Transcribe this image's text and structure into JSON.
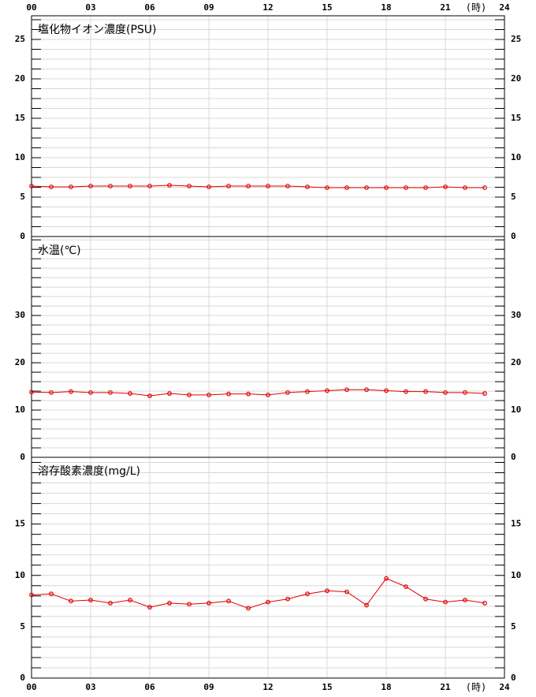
{
  "chart_data": [
    {
      "type": "line",
      "title": "塩化物イオン濃度(PSU)",
      "xlabel": "(時)",
      "x": [
        0,
        1,
        2,
        3,
        4,
        5,
        6,
        7,
        8,
        9,
        10,
        11,
        12,
        13,
        14,
        15,
        16,
        17,
        18,
        19,
        20,
        21,
        22,
        23
      ],
      "xlim": [
        0,
        24
      ],
      "xticks": [
        {
          "value": 0,
          "label": "00"
        },
        {
          "value": 3,
          "label": "03"
        },
        {
          "value": 6,
          "label": "06"
        },
        {
          "value": 9,
          "label": "09"
        },
        12,
        15,
        18,
        21,
        24
      ],
      "series": [
        {
          "color": "#e00000",
          "values": [
            6.4,
            6.3,
            6.3,
            6.4,
            6.4,
            6.4,
            6.4,
            6.5,
            6.4,
            6.3,
            6.4,
            6.4,
            6.4,
            6.4,
            6.3,
            6.2,
            6.2,
            6.2,
            6.2,
            6.2,
            6.2,
            6.3,
            6.2,
            6.2
          ]
        }
      ],
      "ylim": [
        0,
        28
      ],
      "yticks": [
        0,
        5,
        10,
        15,
        20,
        25
      ],
      "minor_yticks": [
        1.25,
        2.5,
        3.75,
        6.25,
        7.5,
        8.75,
        11.25,
        12.5,
        13.75,
        16.25,
        17.5,
        18.75,
        21.25,
        22.5,
        23.75,
        26.25,
        27.5
      ],
      "grid": true
    },
    {
      "type": "line",
      "title": "水温(℃)",
      "x": [
        0,
        1,
        2,
        3,
        4,
        5,
        6,
        7,
        8,
        9,
        10,
        11,
        12,
        13,
        14,
        15,
        16,
        17,
        18,
        19,
        20,
        21,
        22,
        23
      ],
      "xlim": [
        0,
        24
      ],
      "xticks": [
        {
          "value": 0,
          "label": "00"
        },
        {
          "value": 3,
          "label": "03"
        },
        {
          "value": 6,
          "label": "06"
        },
        {
          "value": 9,
          "label": "09"
        },
        12,
        15,
        18,
        21,
        24
      ],
      "series": [
        {
          "color": "#e00000",
          "values": [
            13.8,
            13.7,
            13.9,
            13.7,
            13.7,
            13.5,
            13.0,
            13.5,
            13.2,
            13.2,
            13.4,
            13.4,
            13.2,
            13.7,
            13.9,
            14.1,
            14.3,
            14.3,
            14.1,
            13.9,
            13.9,
            13.7,
            13.7,
            13.5
          ]
        }
      ],
      "ylim": [
        0,
        46.7
      ],
      "yticks": [
        0,
        10,
        20,
        30
      ],
      "minor_yticks": [
        2,
        4,
        6,
        8,
        12,
        14,
        16,
        18,
        22,
        24,
        26,
        28,
        32,
        34,
        36,
        38,
        40,
        42,
        44,
        46
      ],
      "grid": true
    },
    {
      "type": "line",
      "title": "溶存酸素濃度(mg/L)",
      "xlabel": "(時)",
      "x": [
        0,
        1,
        2,
        3,
        4,
        5,
        6,
        7,
        8,
        9,
        10,
        11,
        12,
        13,
        14,
        15,
        16,
        17,
        18,
        19,
        20,
        21,
        22,
        23
      ],
      "xlim": [
        0,
        24
      ],
      "xticks": [
        {
          "value": 0,
          "label": "00"
        },
        {
          "value": 3,
          "label": "03"
        },
        {
          "value": 6,
          "label": "06"
        },
        {
          "value": 9,
          "label": "09"
        },
        12,
        15,
        18,
        21,
        24
      ],
      "series": [
        {
          "color": "#e00000",
          "values": [
            8.1,
            8.2,
            7.5,
            7.6,
            7.3,
            7.6,
            6.9,
            7.3,
            7.2,
            7.3,
            7.5,
            6.8,
            7.4,
            7.7,
            8.2,
            8.5,
            8.4,
            7.1,
            9.7,
            8.9,
            7.7,
            7.4,
            7.6,
            7.3
          ]
        }
      ],
      "ylim": [
        0,
        21.5
      ],
      "yticks": [
        0,
        5,
        10,
        15
      ],
      "minor_yticks": [
        1,
        2,
        3,
        4,
        6,
        7,
        8,
        9,
        11,
        12,
        13,
        14,
        16,
        17,
        18,
        19,
        20,
        21
      ],
      "grid": true
    }
  ]
}
